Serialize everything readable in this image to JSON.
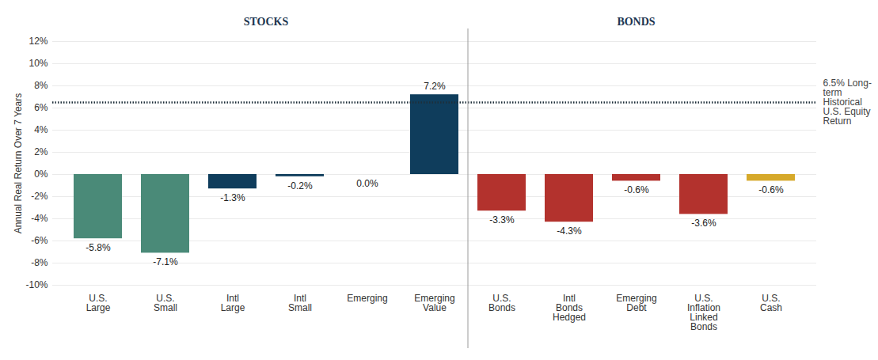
{
  "chart_data": {
    "type": "bar",
    "categories": [
      "U.S. Large",
      "U.S. Small",
      "Intl Large",
      "Intl Small",
      "Emerging",
      "Emerging Value",
      "U.S. Bonds",
      "Intl Bonds Hedged",
      "Emerging Debt",
      "U.S. Inflation Linked Bonds",
      "U.S. Cash"
    ],
    "values": [
      -5.8,
      -7.1,
      -1.3,
      -0.2,
      0.0,
      7.2,
      -3.3,
      -4.3,
      -0.6,
      -3.6,
      -0.6
    ],
    "value_labels": [
      "-5.8%",
      "-7.1%",
      "-1.3%",
      "-0.2%",
      "0.0%",
      "7.2%",
      "-3.3%",
      "-4.3%",
      "-0.6%",
      "-3.6%",
      "-0.6%"
    ],
    "colors": [
      "#4a8a78",
      "#4a8a78",
      "#0f3d5c",
      "#0f3d5c",
      "#0f3d5c",
      "#0f3d5c",
      "#b3322d",
      "#b3322d",
      "#b3322d",
      "#b3322d",
      "#d6a92a"
    ],
    "ylabel": "Annual Real Return Over 7 Years",
    "ylim": [
      -10,
      12
    ],
    "yticks": [
      {
        "value": -10,
        "label": "-10%"
      },
      {
        "value": -8,
        "label": "-8%"
      },
      {
        "value": -6,
        "label": "-6%"
      },
      {
        "value": -4,
        "label": "-4%"
      },
      {
        "value": -2,
        "label": "-2%"
      },
      {
        "value": 0,
        "label": "0%"
      },
      {
        "value": 2,
        "label": "2%"
      },
      {
        "value": 4,
        "label": "4%"
      },
      {
        "value": 6,
        "label": "6%"
      },
      {
        "value": 8,
        "label": "8%"
      },
      {
        "value": 10,
        "label": "10%"
      },
      {
        "value": 12,
        "label": "12%"
      }
    ],
    "grid": true,
    "data_labels": true,
    "groups": [
      {
        "label": "STOCKS",
        "start": "U.S. Large",
        "end": "Emerging Value"
      },
      {
        "label": "BONDS",
        "start": "U.S. Bonds",
        "end": "U.S. Cash"
      }
    ],
    "reference_line": {
      "value": 6.5,
      "label": "6.5% Long-term Historical U.S. Equity Return"
    }
  }
}
